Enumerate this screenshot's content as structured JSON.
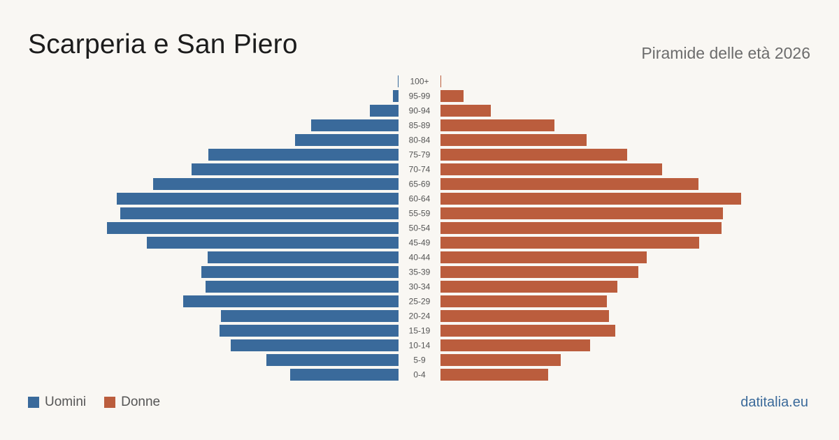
{
  "title": "Scarperia e San Piero",
  "subtitle": "Piramide delle età 2026",
  "brand": "datitalia.eu",
  "legend": {
    "men_label": "Uomini",
    "women_label": "Donne"
  },
  "colors": {
    "men": "#3a6a9b",
    "women": "#bb5d3d",
    "label": "#555555",
    "background": "#f9f7f3"
  },
  "chart_data": {
    "type": "bar",
    "orientation": "horizontal-pyramid",
    "categories": [
      "100+",
      "95-99",
      "90-94",
      "85-89",
      "80-84",
      "75-79",
      "70-74",
      "65-69",
      "60-64",
      "55-59",
      "50-54",
      "45-49",
      "40-44",
      "35-39",
      "30-34",
      "25-29",
      "20-24",
      "15-19",
      "10-14",
      "5-9",
      "0-4"
    ],
    "series": [
      {
        "name": "Uomini",
        "values": [
          1,
          8,
          41,
          125,
          148,
          272,
          296,
          351,
          403,
          398,
          417,
          360,
          273,
          282,
          276,
          308,
          254,
          256,
          240,
          189,
          155
        ]
      },
      {
        "name": "Donne",
        "values": [
          1,
          33,
          72,
          163,
          209,
          267,
          317,
          369,
          430,
          404,
          402,
          370,
          295,
          283,
          253,
          238,
          241,
          250,
          214,
          172,
          154
        ]
      }
    ],
    "legend_position": "bottom-left",
    "grid": false
  }
}
